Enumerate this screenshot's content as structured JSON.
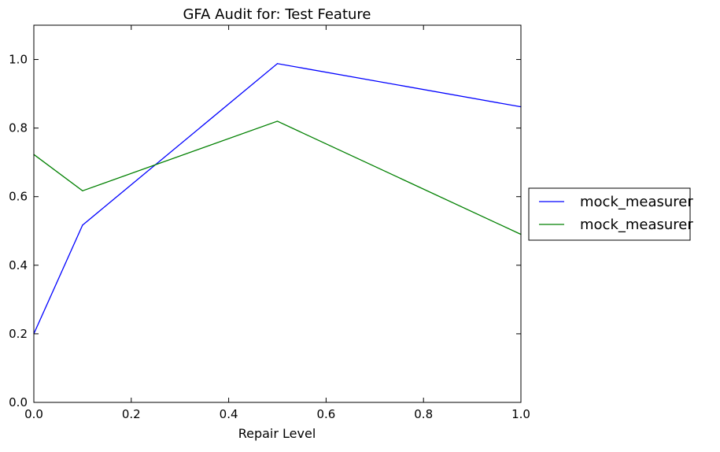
{
  "chart_data": {
    "type": "line",
    "title": "GFA Audit for: Test Feature",
    "xlabel": "Repair Level",
    "ylabel": "",
    "xlim": [
      0.0,
      1.0
    ],
    "ylim": [
      0.0,
      1.1
    ],
    "x_ticks": [
      0.0,
      0.2,
      0.4,
      0.6,
      0.8,
      1.0
    ],
    "x_tick_labels": [
      "0.0",
      "0.2",
      "0.4",
      "0.6",
      "0.8",
      "1.0"
    ],
    "y_ticks": [
      0.0,
      0.2,
      0.4,
      0.6,
      0.8,
      1.0
    ],
    "y_tick_labels": [
      "0.0",
      "0.2",
      "0.4",
      "0.6",
      "0.8",
      "1.0"
    ],
    "grid": false,
    "legend_position": "outside-right",
    "x": [
      0.0,
      0.1,
      0.5,
      1.0
    ],
    "series": [
      {
        "name": "mock_measurer",
        "color": "#0000ff",
        "values": [
          0.2,
          0.517,
          0.988,
          0.862
        ]
      },
      {
        "name": "mock_measurer",
        "color": "#008000",
        "values": [
          0.723,
          0.617,
          0.82,
          0.49
        ]
      }
    ]
  }
}
